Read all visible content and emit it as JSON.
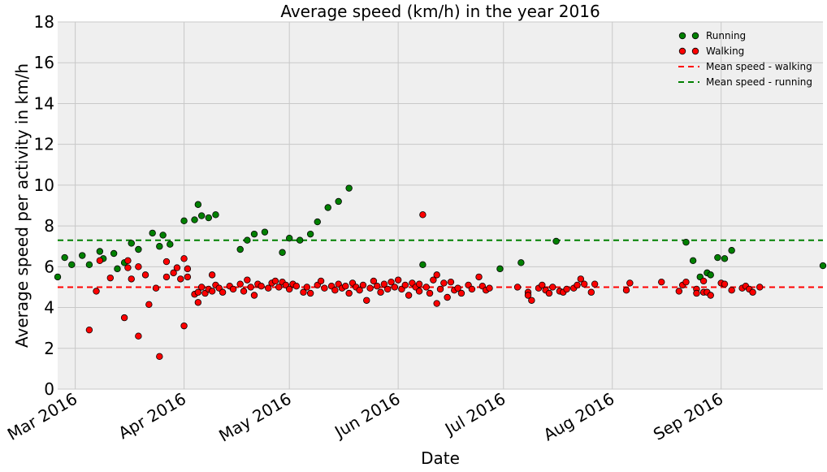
{
  "chart_data": {
    "type": "scatter",
    "title": "Average speed (km/h) in the year 2016",
    "xlabel": "Date",
    "ylabel": "Average speed per activity in km/h",
    "xlim": [
      "2016-02-25",
      "2016-09-30"
    ],
    "ylim": [
      0,
      18
    ],
    "yticks": [
      0,
      2,
      4,
      6,
      8,
      10,
      12,
      14,
      16,
      18
    ],
    "xticks": [
      {
        "date": "2016-03-01",
        "label": "Mar 2016"
      },
      {
        "date": "2016-04-01",
        "label": "Apr 2016"
      },
      {
        "date": "2016-05-01",
        "label": "May 2016"
      },
      {
        "date": "2016-06-01",
        "label": "Jun 2016"
      },
      {
        "date": "2016-07-01",
        "label": "Jul 2016"
      },
      {
        "date": "2016-08-01",
        "label": "Aug 2016"
      },
      {
        "date": "2016-09-01",
        "label": "Sep 2016"
      }
    ],
    "grid": true,
    "legend_position": "top-right",
    "background": "#efefef",
    "series": [
      {
        "name": "Running",
        "kind": "points",
        "color": "#008000",
        "points": [
          [
            "2016-02-25",
            5.5
          ],
          [
            "2016-02-27",
            6.45
          ],
          [
            "2016-02-29",
            6.1
          ],
          [
            "2016-03-03",
            6.55
          ],
          [
            "2016-03-05",
            6.1
          ],
          [
            "2016-03-08",
            6.75
          ],
          [
            "2016-03-09",
            6.4
          ],
          [
            "2016-03-12",
            6.65
          ],
          [
            "2016-03-13",
            5.9
          ],
          [
            "2016-03-15",
            6.2
          ],
          [
            "2016-03-17",
            7.15
          ],
          [
            "2016-03-19",
            6.85
          ],
          [
            "2016-03-23",
            7.65
          ],
          [
            "2016-03-25",
            7.0
          ],
          [
            "2016-03-26",
            7.55
          ],
          [
            "2016-03-28",
            7.1
          ],
          [
            "2016-04-01",
            8.25
          ],
          [
            "2016-04-04",
            8.3
          ],
          [
            "2016-04-05",
            9.05
          ],
          [
            "2016-04-06",
            8.5
          ],
          [
            "2016-04-08",
            8.4
          ],
          [
            "2016-04-10",
            8.55
          ],
          [
            "2016-04-17",
            6.85
          ],
          [
            "2016-04-19",
            7.3
          ],
          [
            "2016-04-21",
            7.6
          ],
          [
            "2016-04-24",
            7.7
          ],
          [
            "2016-04-29",
            6.7
          ],
          [
            "2016-05-01",
            7.4
          ],
          [
            "2016-05-04",
            7.3
          ],
          [
            "2016-05-07",
            7.6
          ],
          [
            "2016-05-09",
            8.2
          ],
          [
            "2016-05-12",
            8.9
          ],
          [
            "2016-05-15",
            9.2
          ],
          [
            "2016-05-18",
            9.85
          ],
          [
            "2016-06-08",
            6.1
          ],
          [
            "2016-06-30",
            5.9
          ],
          [
            "2016-07-06",
            6.2
          ],
          [
            "2016-07-16",
            7.25
          ],
          [
            "2016-08-22",
            7.2
          ],
          [
            "2016-08-24",
            6.3
          ],
          [
            "2016-08-26",
            5.5
          ],
          [
            "2016-08-28",
            5.7
          ],
          [
            "2016-08-29",
            5.6
          ],
          [
            "2016-08-31",
            6.45
          ],
          [
            "2016-09-02",
            6.4
          ],
          [
            "2016-09-04",
            6.8
          ],
          [
            "2016-09-30",
            6.05
          ]
        ]
      },
      {
        "name": "Walking",
        "kind": "points",
        "color": "#ff0000",
        "points": [
          [
            "2016-03-05",
            2.9
          ],
          [
            "2016-03-07",
            4.8
          ],
          [
            "2016-03-08",
            6.3
          ],
          [
            "2016-03-11",
            5.45
          ],
          [
            "2016-03-15",
            3.5
          ],
          [
            "2016-03-16",
            5.95
          ],
          [
            "2016-03-16",
            6.3
          ],
          [
            "2016-03-17",
            5.4
          ],
          [
            "2016-03-19",
            6.0
          ],
          [
            "2016-03-19",
            2.6
          ],
          [
            "2016-03-21",
            5.6
          ],
          [
            "2016-03-22",
            4.15
          ],
          [
            "2016-03-24",
            4.95
          ],
          [
            "2016-03-25",
            1.6
          ],
          [
            "2016-03-27",
            6.25
          ],
          [
            "2016-03-27",
            5.5
          ],
          [
            "2016-03-29",
            5.7
          ],
          [
            "2016-03-30",
            5.95
          ],
          [
            "2016-03-31",
            5.4
          ],
          [
            "2016-04-01",
            6.4
          ],
          [
            "2016-04-01",
            3.1
          ],
          [
            "2016-04-02",
            5.9
          ],
          [
            "2016-04-02",
            5.5
          ],
          [
            "2016-04-04",
            4.65
          ],
          [
            "2016-04-05",
            4.25
          ],
          [
            "2016-04-05",
            4.75
          ],
          [
            "2016-04-06",
            5.0
          ],
          [
            "2016-04-07",
            4.7
          ],
          [
            "2016-04-08",
            4.9
          ],
          [
            "2016-04-09",
            5.6
          ],
          [
            "2016-04-09",
            4.8
          ],
          [
            "2016-04-10",
            5.1
          ],
          [
            "2016-04-11",
            4.95
          ],
          [
            "2016-04-12",
            4.75
          ],
          [
            "2016-04-14",
            5.05
          ],
          [
            "2016-04-15",
            4.9
          ],
          [
            "2016-04-17",
            5.15
          ],
          [
            "2016-04-18",
            4.8
          ],
          [
            "2016-04-19",
            5.35
          ],
          [
            "2016-04-20",
            5.0
          ],
          [
            "2016-04-21",
            4.6
          ],
          [
            "2016-04-22",
            5.15
          ],
          [
            "2016-04-23",
            5.05
          ],
          [
            "2016-04-25",
            4.95
          ],
          [
            "2016-04-26",
            5.2
          ],
          [
            "2016-04-27",
            5.3
          ],
          [
            "2016-04-28",
            5.0
          ],
          [
            "2016-04-29",
            5.25
          ],
          [
            "2016-04-30",
            5.1
          ],
          [
            "2016-05-01",
            4.9
          ],
          [
            "2016-05-02",
            5.15
          ],
          [
            "2016-05-03",
            5.05
          ],
          [
            "2016-05-05",
            4.75
          ],
          [
            "2016-05-06",
            5.0
          ],
          [
            "2016-05-07",
            4.7
          ],
          [
            "2016-05-09",
            5.1
          ],
          [
            "2016-05-10",
            5.3
          ],
          [
            "2016-05-11",
            4.95
          ],
          [
            "2016-05-13",
            5.05
          ],
          [
            "2016-05-14",
            4.85
          ],
          [
            "2016-05-15",
            5.15
          ],
          [
            "2016-05-16",
            4.95
          ],
          [
            "2016-05-17",
            5.05
          ],
          [
            "2016-05-18",
            4.7
          ],
          [
            "2016-05-19",
            5.2
          ],
          [
            "2016-05-20",
            5.0
          ],
          [
            "2016-05-21",
            4.85
          ],
          [
            "2016-05-22",
            5.1
          ],
          [
            "2016-05-23",
            4.35
          ],
          [
            "2016-05-24",
            4.95
          ],
          [
            "2016-05-25",
            5.3
          ],
          [
            "2016-05-26",
            5.05
          ],
          [
            "2016-05-27",
            4.75
          ],
          [
            "2016-05-28",
            5.15
          ],
          [
            "2016-05-29",
            4.9
          ],
          [
            "2016-05-30",
            5.25
          ],
          [
            "2016-05-31",
            5.0
          ],
          [
            "2016-06-01",
            5.35
          ],
          [
            "2016-06-02",
            4.9
          ],
          [
            "2016-06-03",
            5.1
          ],
          [
            "2016-06-04",
            4.6
          ],
          [
            "2016-06-05",
            5.2
          ],
          [
            "2016-06-06",
            5.0
          ],
          [
            "2016-06-07",
            4.8
          ],
          [
            "2016-06-07",
            5.15
          ],
          [
            "2016-06-08",
            8.55
          ],
          [
            "2016-06-09",
            5.0
          ],
          [
            "2016-06-10",
            4.7
          ],
          [
            "2016-06-11",
            5.35
          ],
          [
            "2016-06-12",
            4.2
          ],
          [
            "2016-06-12",
            5.6
          ],
          [
            "2016-06-13",
            4.9
          ],
          [
            "2016-06-14",
            5.2
          ],
          [
            "2016-06-15",
            4.5
          ],
          [
            "2016-06-16",
            5.25
          ],
          [
            "2016-06-17",
            4.85
          ],
          [
            "2016-06-18",
            4.95
          ],
          [
            "2016-06-19",
            4.7
          ],
          [
            "2016-06-21",
            5.1
          ],
          [
            "2016-06-22",
            4.9
          ],
          [
            "2016-06-24",
            5.5
          ],
          [
            "2016-06-25",
            5.05
          ],
          [
            "2016-06-26",
            4.85
          ],
          [
            "2016-06-27",
            4.95
          ],
          [
            "2016-07-05",
            5.0
          ],
          [
            "2016-07-08",
            4.75
          ],
          [
            "2016-07-08",
            4.6
          ],
          [
            "2016-07-09",
            4.35
          ],
          [
            "2016-07-11",
            4.95
          ],
          [
            "2016-07-12",
            5.1
          ],
          [
            "2016-07-13",
            4.85
          ],
          [
            "2016-07-14",
            4.7
          ],
          [
            "2016-07-15",
            5.0
          ],
          [
            "2016-07-17",
            4.8
          ],
          [
            "2016-07-18",
            4.75
          ],
          [
            "2016-07-19",
            4.9
          ],
          [
            "2016-07-21",
            4.95
          ],
          [
            "2016-07-22",
            5.1
          ],
          [
            "2016-07-23",
            5.4
          ],
          [
            "2016-07-24",
            5.15
          ],
          [
            "2016-07-26",
            4.75
          ],
          [
            "2016-07-27",
            5.15
          ],
          [
            "2016-08-05",
            4.85
          ],
          [
            "2016-08-06",
            5.2
          ],
          [
            "2016-08-15",
            5.25
          ],
          [
            "2016-08-20",
            4.8
          ],
          [
            "2016-08-21",
            5.1
          ],
          [
            "2016-08-22",
            5.25
          ],
          [
            "2016-08-25",
            4.9
          ],
          [
            "2016-08-25",
            4.7
          ],
          [
            "2016-08-27",
            5.3
          ],
          [
            "2016-08-27",
            4.75
          ],
          [
            "2016-08-28",
            4.75
          ],
          [
            "2016-08-29",
            4.6
          ],
          [
            "2016-09-01",
            5.2
          ],
          [
            "2016-09-02",
            5.15
          ],
          [
            "2016-09-04",
            4.85
          ],
          [
            "2016-09-07",
            4.95
          ],
          [
            "2016-09-08",
            5.05
          ],
          [
            "2016-09-09",
            4.9
          ],
          [
            "2016-09-10",
            4.75
          ],
          [
            "2016-09-12",
            5.0
          ]
        ]
      },
      {
        "name": "Mean speed - walking",
        "kind": "hline",
        "color": "#ff0000",
        "value": 5.0
      },
      {
        "name": "Mean speed - running",
        "kind": "hline",
        "color": "#008000",
        "value": 7.3
      }
    ]
  }
}
